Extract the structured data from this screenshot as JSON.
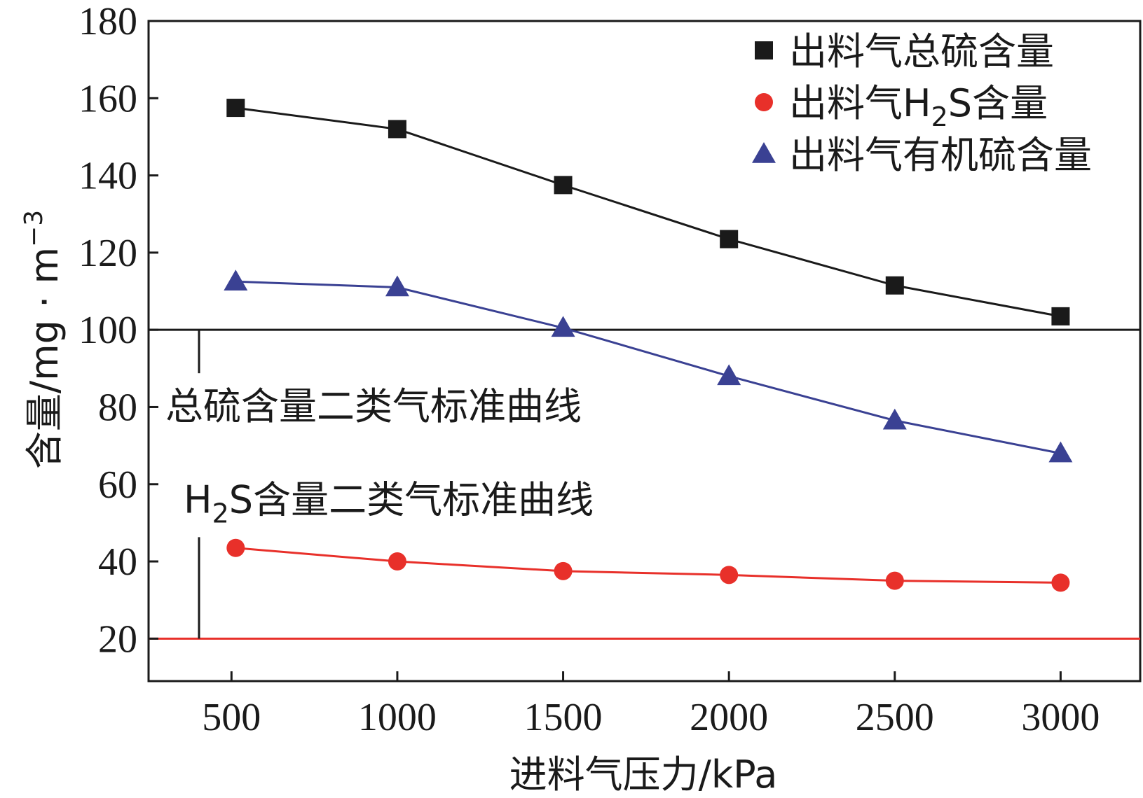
{
  "chart_data": {
    "type": "line",
    "xlabel": "进料气压力/kPa",
    "ylabel": "含量/mg · m",
    "ylabel_sup": "−3",
    "x": [
      500,
      1000,
      1500,
      2000,
      2500,
      3000
    ],
    "xticks": [
      "500",
      "1000",
      "1500",
      "2000",
      "2500",
      "3000"
    ],
    "yticks": [
      "20",
      "40",
      "60",
      "80",
      "100",
      "120",
      "140",
      "160",
      "180"
    ],
    "xlim": [
      250,
      3240
    ],
    "ylim": [
      9,
      180
    ],
    "series": [
      {
        "name_parts": [
          "出料气总硫含量"
        ],
        "marker": "square",
        "color": "#1a1a1a",
        "values": [
          157.5,
          152,
          137.5,
          123.5,
          111.5,
          103.5
        ]
      },
      {
        "name_parts": [
          "出料气H",
          "2",
          "S含量"
        ],
        "marker": "circle",
        "color": "#e8302a",
        "values": [
          43.5,
          40,
          37.5,
          36.5,
          35,
          34.5
        ]
      },
      {
        "name_parts": [
          "出料气有机硫含量"
        ],
        "marker": "triangle",
        "color": "#3a4193",
        "values": [
          112.5,
          111,
          100.5,
          88,
          76.5,
          68
        ]
      }
    ],
    "reference_lines": [
      {
        "y": 100,
        "color": "#1a1a1a",
        "label_parts": [
          "总硫含量二类气标准曲线"
        ]
      },
      {
        "y": 20,
        "color": "#e8302a",
        "label_parts": [
          "H",
          "2",
          "S含量二类气标准曲线"
        ]
      }
    ],
    "legend_position": "top-right",
    "grid": false
  }
}
